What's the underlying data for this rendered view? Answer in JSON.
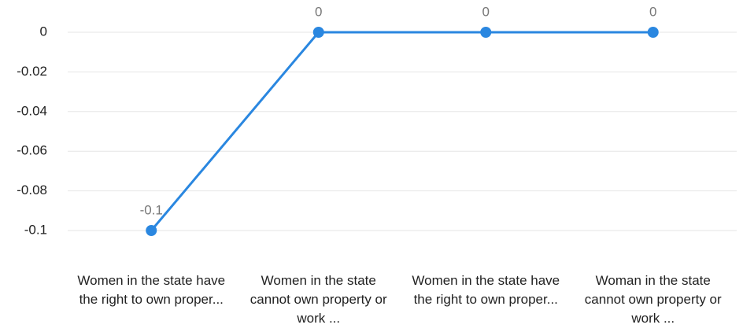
{
  "chart_data": {
    "type": "line",
    "categories": [
      "Women in the state have the right to own proper...",
      "Women in the state cannot own property or work ...",
      "Women in the state have the right to own proper...",
      "Woman in the state cannot own property or work ..."
    ],
    "series": [
      {
        "color": "#2a87e0",
        "values": [
          -0.1,
          0,
          0,
          0
        ]
      }
    ],
    "ylim": [
      -0.1,
      0
    ],
    "yticks": [
      0,
      -0.02,
      -0.04,
      -0.06,
      -0.08,
      -0.1
    ],
    "grid": true
  }
}
